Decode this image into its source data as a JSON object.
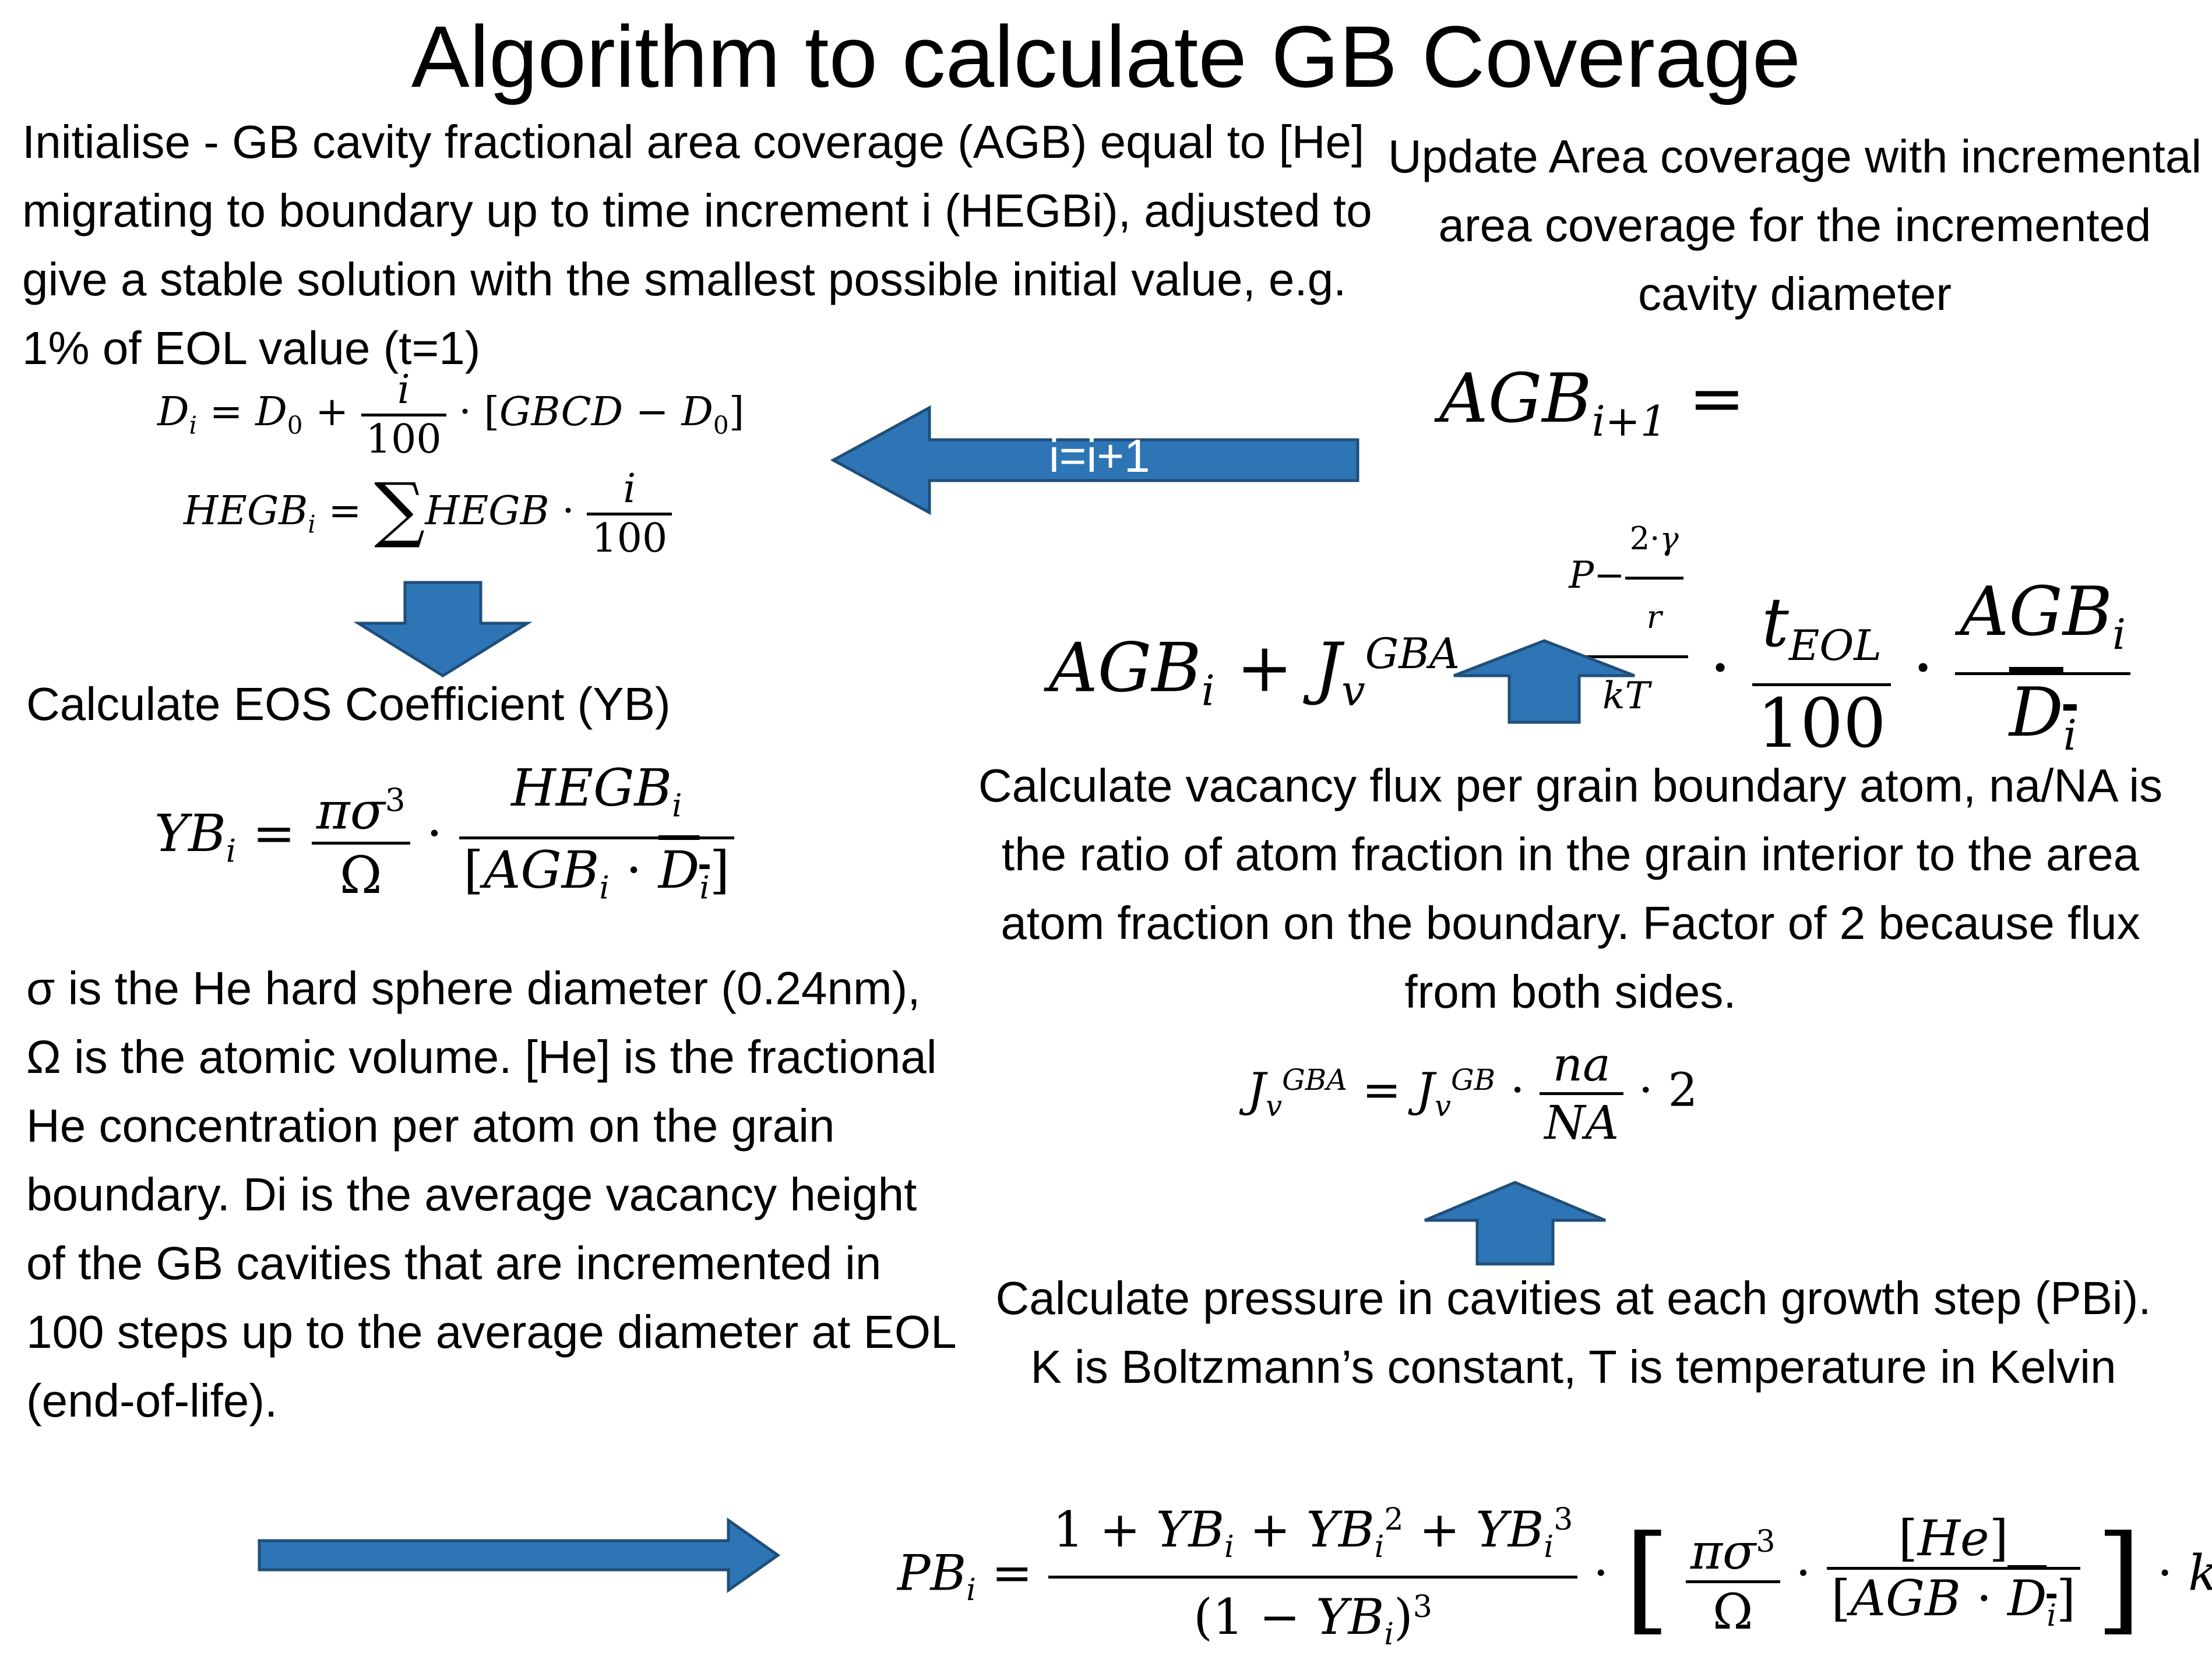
{
  "title": "Algorithm to calculate GB Coverage",
  "steps": {
    "initialise": "Initialise - GB cavity fractional area coverage (AGB) equal to [He] migrating to boundary up to time increment i (HEGBi), adjusted to give a stable solution with the smallest possible initial value, e.g. 1% of EOL value (t=1)",
    "eos_heading": "Calculate EOS Coefficient (YB)",
    "definitions": "σ is the He hard sphere diameter (0.24nm), Ω is the atomic volume. [He] is the fractional He concentration per atom on the grain boundary. Di is the average vacancy height of the GB cavities that are incremented in 100 steps up to the average diameter at EOL (end-of-life).",
    "pressure": "Calculate pressure in cavities at each growth step (PBi). K is Boltzmann’s constant, T is temperature in Kelvin",
    "vacancy_flux": "Calculate vacancy flux per grain boundary atom, na/NA is the ratio of atom fraction in the grain interior to the area atom fraction on the boundary. Factor of 2 because flux from both sides.",
    "update": "Update Area coverage with incremental area coverage for the incremented cavity diameter"
  },
  "loop_label": "i=i+1",
  "colors": {
    "arrow_fill": "#2E75B6",
    "arrow_stroke": "#1F4E79"
  }
}
